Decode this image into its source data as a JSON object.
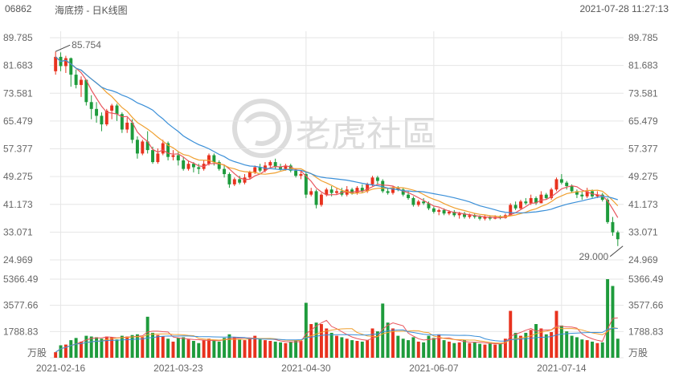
{
  "header": {
    "code": "06862",
    "name": "海底捞 - 日K线图",
    "timestamp": "2021-07-28 11:27:13"
  },
  "watermark": "老虎社區",
  "colors": {
    "up": "#e8321e",
    "down": "#1e9b3c",
    "ma5": "#e8555d",
    "ma10": "#f0a030",
    "ma20": "#3a8fd8",
    "grid": "#e6e6e6"
  },
  "chart_data": {
    "type": "candlestick",
    "price_axis": {
      "ticks": [
        "89.785",
        "81.683",
        "73.581",
        "65.479",
        "57.377",
        "49.275",
        "41.173",
        "33.071",
        "24.969"
      ],
      "min": 24.969,
      "max": 89.785
    },
    "volume_axis": {
      "ticks": [
        "5366.49",
        "3577.66",
        "1788.83"
      ],
      "unit": "万股",
      "max": 5366.49
    },
    "x_ticks": [
      {
        "label": "2021-02-16",
        "index": 1
      },
      {
        "label": "2021-03-23",
        "index": 24
      },
      {
        "label": "2021-04-30",
        "index": 49
      },
      {
        "label": "2021-06-07",
        "index": 74
      },
      {
        "label": "2021-07-14",
        "index": 99
      }
    ],
    "annotations": [
      {
        "text": "85.754",
        "index": 0,
        "value": 85.754
      },
      {
        "text": "29.000",
        "index": 111,
        "value": 29.0
      }
    ],
    "candles": [
      [
        80.0,
        84.2,
        85.754,
        79.0,
        380
      ],
      [
        84.2,
        81.5,
        85.5,
        80.0,
        850
      ],
      [
        81.5,
        83.8,
        84.5,
        79.5,
        900
      ],
      [
        83.8,
        79.0,
        84.0,
        75.5,
        1200
      ],
      [
        79.0,
        76.0,
        80.5,
        75.0,
        1350
      ],
      [
        76.0,
        77.5,
        78.5,
        72.5,
        1100
      ],
      [
        77.5,
        71.0,
        77.5,
        70.0,
        1500
      ],
      [
        71.0,
        69.0,
        73.0,
        66.0,
        1450
      ],
      [
        69.0,
        67.0,
        71.0,
        65.0,
        1400
      ],
      [
        67.0,
        64.5,
        68.0,
        62.5,
        1300
      ],
      [
        64.5,
        68.5,
        69.0,
        64.0,
        1450
      ],
      [
        68.5,
        70.0,
        70.5,
        66.0,
        1400
      ],
      [
        70.0,
        67.5,
        70.5,
        65.5,
        1250
      ],
      [
        67.5,
        63.0,
        68.0,
        62.0,
        1500
      ],
      [
        63.0,
        65.0,
        66.5,
        62.0,
        1450
      ],
      [
        65.0,
        60.0,
        66.0,
        59.0,
        1550
      ],
      [
        60.0,
        56.0,
        61.0,
        54.5,
        1600
      ],
      [
        56.0,
        59.5,
        60.0,
        55.5,
        1400
      ],
      [
        59.5,
        57.0,
        62.5,
        56.0,
        2800
      ],
      [
        57.0,
        53.5,
        58.0,
        53.0,
        1700
      ],
      [
        53.5,
        56.0,
        57.5,
        53.0,
        1550
      ],
      [
        56.0,
        59.0,
        60.0,
        55.5,
        1450
      ],
      [
        59.0,
        55.0,
        59.5,
        54.0,
        1300
      ],
      [
        55.0,
        55.5,
        57.0,
        54.0,
        1100
      ],
      [
        55.5,
        54.0,
        56.5,
        52.5,
        1350
      ],
      [
        54.0,
        51.5,
        55.0,
        51.0,
        1400
      ],
      [
        51.5,
        53.0,
        54.0,
        51.0,
        1250
      ],
      [
        53.0,
        52.0,
        53.5,
        50.5,
        1150
      ],
      [
        52.0,
        51.5,
        53.0,
        50.0,
        1000
      ],
      [
        51.5,
        53.0,
        54.0,
        51.0,
        1200
      ],
      [
        53.0,
        55.5,
        56.0,
        52.5,
        1300
      ],
      [
        55.5,
        53.5,
        56.0,
        52.5,
        1200
      ],
      [
        53.5,
        51.5,
        54.0,
        51.0,
        1100
      ],
      [
        51.5,
        50.0,
        52.5,
        49.0,
        1350
      ],
      [
        50.0,
        47.0,
        50.5,
        46.0,
        1600
      ],
      [
        47.0,
        48.5,
        49.0,
        46.5,
        1400
      ],
      [
        48.5,
        47.5,
        49.5,
        47.0,
        1250
      ],
      [
        47.5,
        49.0,
        50.0,
        47.0,
        1200
      ],
      [
        49.0,
        50.5,
        51.0,
        48.5,
        1300
      ],
      [
        50.5,
        52.0,
        52.5,
        50.0,
        1500
      ],
      [
        52.0,
        51.0,
        53.0,
        50.5,
        1250
      ],
      [
        51.0,
        52.5,
        53.5,
        50.5,
        1200
      ],
      [
        52.5,
        53.5,
        54.0,
        52.0,
        1150
      ],
      [
        53.5,
        52.0,
        54.5,
        51.5,
        1100
      ],
      [
        52.0,
        51.5,
        53.0,
        51.0,
        1050
      ],
      [
        51.5,
        52.5,
        53.0,
        51.0,
        1000
      ],
      [
        52.5,
        51.0,
        53.0,
        50.5,
        1100
      ],
      [
        51.0,
        49.5,
        51.5,
        49.0,
        1200
      ],
      [
        49.5,
        50.0,
        51.0,
        48.5,
        1150
      ],
      [
        50.0,
        44.0,
        50.5,
        43.0,
        3750
      ],
      [
        44.0,
        45.0,
        46.0,
        43.5,
        2300
      ],
      [
        45.0,
        41.0,
        45.5,
        40.0,
        2400
      ],
      [
        41.0,
        44.0,
        44.5,
        40.5,
        2300
      ],
      [
        44.0,
        45.5,
        46.0,
        43.5,
        2000
      ],
      [
        45.5,
        44.5,
        46.5,
        43.5,
        1700
      ],
      [
        44.5,
        45.0,
        46.0,
        44.0,
        1500
      ],
      [
        45.0,
        44.0,
        46.0,
        43.5,
        1400
      ],
      [
        44.0,
        45.5,
        46.5,
        43.5,
        1300
      ],
      [
        45.5,
        44.5,
        46.0,
        44.0,
        1200
      ],
      [
        44.5,
        46.0,
        46.5,
        44.0,
        1150
      ],
      [
        46.0,
        45.0,
        47.0,
        44.5,
        1100
      ],
      [
        45.0,
        47.0,
        47.5,
        44.5,
        1200
      ],
      [
        47.0,
        49.0,
        49.5,
        46.5,
        2000
      ],
      [
        49.0,
        48.0,
        49.5,
        47.0,
        1800
      ],
      [
        48.0,
        45.0,
        48.5,
        44.5,
        3700
      ],
      [
        45.0,
        44.5,
        46.0,
        44.0,
        2400
      ],
      [
        44.5,
        46.0,
        46.5,
        44.0,
        2000
      ],
      [
        46.0,
        45.5,
        46.5,
        45.0,
        1500
      ],
      [
        45.5,
        44.0,
        46.0,
        43.5,
        1300
      ],
      [
        44.0,
        43.0,
        45.0,
        42.5,
        1200
      ],
      [
        43.0,
        41.0,
        43.5,
        40.5,
        1400
      ],
      [
        41.0,
        42.0,
        42.5,
        40.5,
        1100
      ],
      [
        42.0,
        41.5,
        43.0,
        41.0,
        1050
      ],
      [
        41.5,
        40.0,
        42.0,
        39.5,
        1500
      ],
      [
        40.0,
        39.0,
        40.5,
        38.5,
        1350
      ],
      [
        39.0,
        39.5,
        40.0,
        38.0,
        1600
      ],
      [
        39.5,
        38.5,
        40.0,
        38.0,
        1200
      ],
      [
        38.5,
        39.0,
        39.5,
        38.0,
        1100
      ],
      [
        39.0,
        38.0,
        39.5,
        37.5,
        1000
      ],
      [
        38.0,
        38.5,
        39.0,
        37.0,
        1050
      ],
      [
        38.5,
        37.5,
        39.0,
        37.0,
        1200
      ],
      [
        37.5,
        38.0,
        38.5,
        37.0,
        1000
      ],
      [
        38.0,
        37.5,
        38.5,
        37.0,
        1050
      ],
      [
        37.5,
        37.0,
        38.0,
        36.5,
        950
      ],
      [
        37.0,
        37.5,
        38.0,
        36.5,
        900
      ],
      [
        37.5,
        37.0,
        38.0,
        36.5,
        1000
      ],
      [
        37.0,
        37.5,
        38.0,
        36.8,
        900
      ],
      [
        37.5,
        37.2,
        38.0,
        36.8,
        950
      ],
      [
        37.2,
        38.0,
        38.5,
        37.0,
        1300
      ],
      [
        38.0,
        41.0,
        41.5,
        37.8,
        3200
      ],
      [
        41.0,
        40.0,
        42.0,
        39.5,
        1700
      ],
      [
        40.0,
        42.0,
        42.5,
        39.5,
        1500
      ],
      [
        42.0,
        41.5,
        43.0,
        41.0,
        1700
      ],
      [
        41.5,
        43.0,
        44.0,
        41.0,
        1900
      ],
      [
        43.0,
        41.5,
        43.5,
        41.0,
        2300
      ],
      [
        41.5,
        44.0,
        45.0,
        41.5,
        2000
      ],
      [
        44.0,
        43.0,
        44.5,
        42.5,
        1600
      ],
      [
        43.0,
        45.5,
        46.0,
        42.5,
        1750
      ],
      [
        45.5,
        48.5,
        49.0,
        45.0,
        3200
      ],
      [
        48.5,
        47.5,
        50.0,
        47.0,
        2200
      ],
      [
        47.5,
        46.5,
        48.0,
        45.5,
        1800
      ],
      [
        46.5,
        45.0,
        47.0,
        44.5,
        1500
      ],
      [
        45.0,
        44.0,
        45.5,
        43.0,
        1400
      ],
      [
        44.0,
        43.5,
        45.0,
        42.5,
        1250
      ],
      [
        43.5,
        45.0,
        46.0,
        43.0,
        1200
      ],
      [
        45.0,
        43.5,
        45.5,
        43.0,
        1100
      ],
      [
        43.5,
        44.0,
        45.0,
        43.0,
        1000
      ],
      [
        44.0,
        42.5,
        44.5,
        42.0,
        1050
      ],
      [
        42.5,
        36.0,
        43.0,
        35.5,
        5366
      ],
      [
        36.0,
        33.0,
        37.5,
        32.0,
        4900
      ],
      [
        33.0,
        31.0,
        33.5,
        29.0,
        1300
      ]
    ],
    "ma_series": [
      {
        "name": "MA5",
        "color": "#e8555d"
      },
      {
        "name": "MA10",
        "color": "#f0a030"
      },
      {
        "name": "MA20",
        "color": "#3a8fd8"
      }
    ]
  }
}
